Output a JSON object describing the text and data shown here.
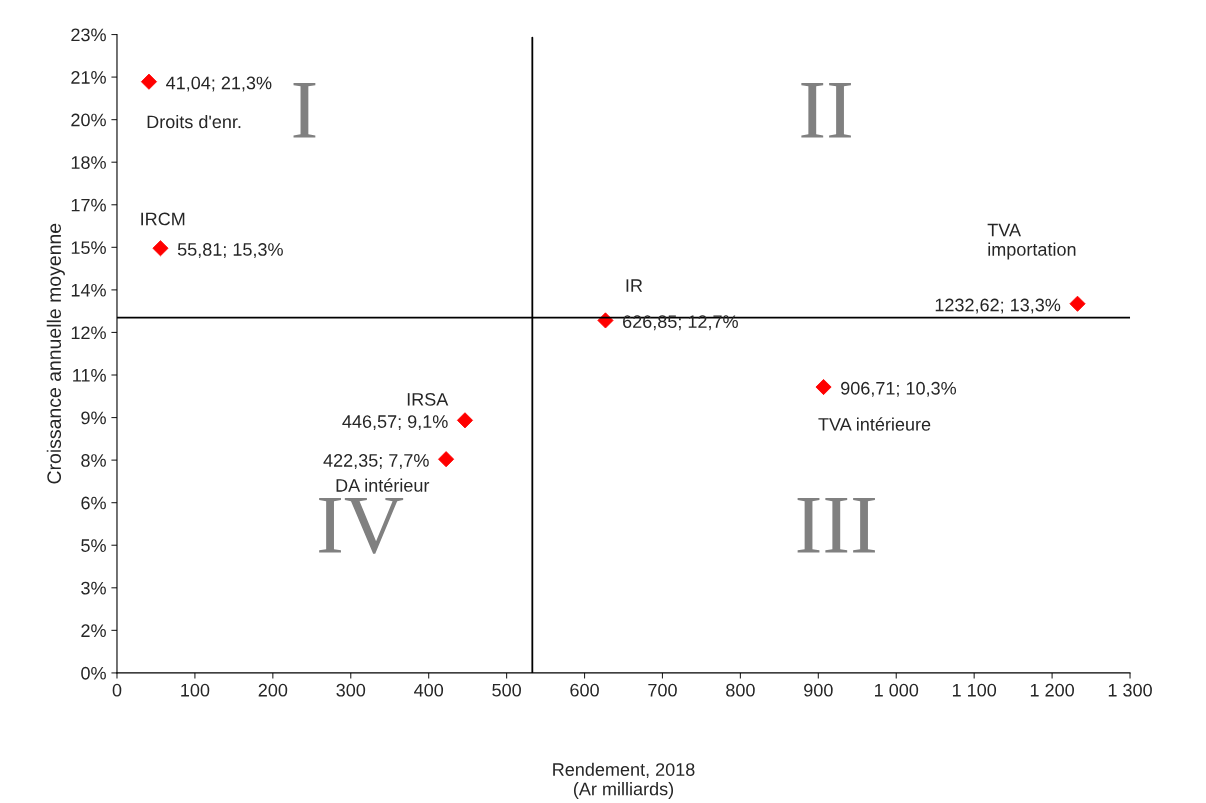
{
  "chart_data": {
    "type": "scatter",
    "xlabel": "Rendement, 2018\n(Ar milliards)",
    "ylabel": "Croissance annuelle moyenne",
    "x": [
      41.04,
      55.81,
      626.85,
      1232.62,
      906.71,
      446.57,
      422.35
    ],
    "series": [
      {
        "color": "#ff0000",
        "values": [
          21.3,
          15.3,
          12.7,
          13.3,
          10.3,
          9.1,
          7.7
        ]
      }
    ],
    "value_labels": [
      "41,04; 21,3%",
      "55,81; 15,3%",
      "626,85; 12,7%",
      "1232,62; 13,3%",
      "906,71; 10,3%",
      "446,57; 9,1%",
      "422,35; 7,7%"
    ],
    "marker": "diamond",
    "grid": false,
    "xlim": [
      0,
      1300
    ],
    "xticks": [
      0,
      100,
      200,
      300,
      400,
      500,
      600,
      700,
      800,
      900,
      {
        "value": 1000,
        "label": "1 000"
      },
      {
        "value": 1100,
        "label": "1 100"
      },
      {
        "value": 1200,
        "label": "1 200"
      },
      {
        "value": 1300,
        "label": "1 300"
      }
    ],
    "ylim": [
      0,
      23
    ],
    "yticks": [
      {
        "value": 0,
        "label": "0%"
      },
      {
        "value": 1.5333,
        "label": "2%"
      },
      {
        "value": 3.0667,
        "label": "3%"
      },
      {
        "value": 4.6,
        "label": "5%"
      },
      {
        "value": 6.1333,
        "label": "6%"
      },
      {
        "value": 7.6667,
        "label": "8%"
      },
      {
        "value": 9.2,
        "label": "9%"
      },
      {
        "value": 10.7333,
        "label": "11%"
      },
      {
        "value": 12.2667,
        "label": "12%"
      },
      {
        "value": 13.8,
        "label": "14%"
      },
      {
        "value": 15.3333,
        "label": "15%"
      },
      {
        "value": 16.8667,
        "label": "17%"
      },
      {
        "value": 18.4,
        "label": "18%"
      },
      {
        "value": 19.9333,
        "label": "20%"
      },
      {
        "value": 21.4667,
        "label": "21%"
      },
      {
        "value": 23,
        "label": "23%"
      }
    ],
    "ref_lines": [
      {
        "axis": "x",
        "value": 533,
        "color": "#000000"
      },
      {
        "axis": "y",
        "value": 12.8,
        "color": "#000000"
      }
    ],
    "annotations": [
      {
        "text": "Droits d'enr.",
        "x": 41.04,
        "y": 21.3
      },
      {
        "text": "IRCM",
        "x": 55.81,
        "y": 15.3
      },
      {
        "text": "IR",
        "x": 626.85,
        "y": 12.7
      },
      {
        "text": "TVA\nimportation",
        "x": 1232.62,
        "y": 13.3
      },
      {
        "text": "TVA intérieure",
        "x": 906.71,
        "y": 10.3
      },
      {
        "text": "IRSA",
        "x": 446.57,
        "y": 9.1
      },
      {
        "text": "DA intérieur",
        "x": 422.35,
        "y": 7.7
      },
      "I",
      "II",
      "III",
      "IV"
    ]
  }
}
